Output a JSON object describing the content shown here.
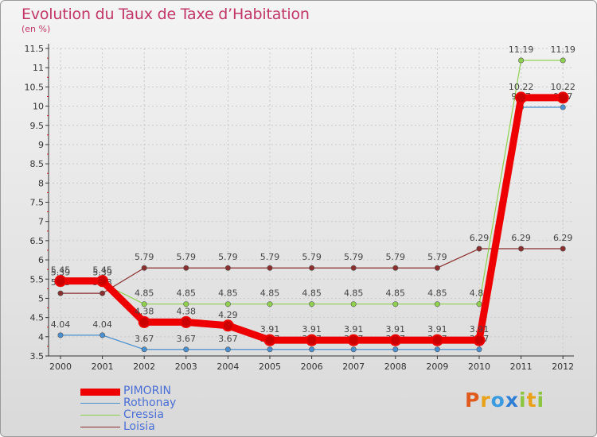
{
  "header": {
    "title": "Evolution du Taux de Taxe d’Habitation",
    "unit": "(en %)"
  },
  "chart_data": {
    "type": "line",
    "title": "Evolution du Taux de Taxe d’Habitation",
    "ylabel": "(en %)",
    "xlabel": "",
    "categories": [
      "2000",
      "2001",
      "2002",
      "2003",
      "2004",
      "2005",
      "2006",
      "2007",
      "2008",
      "2009",
      "2010",
      "2011",
      "2012"
    ],
    "ylim": [
      3.5,
      11.5
    ],
    "yticks": [
      "3.5",
      "4",
      "4.5",
      "5",
      "5.5",
      "6",
      "6.5",
      "7",
      "7.5",
      "8",
      "8.5",
      "9",
      "9.5",
      "10",
      "10.5",
      "11",
      "11.5"
    ],
    "series": [
      {
        "name": "PIMORIN",
        "color": "#ee0000",
        "values": [
          5.45,
          5.45,
          4.38,
          4.38,
          4.29,
          3.91,
          3.91,
          3.91,
          3.91,
          3.91,
          3.91,
          10.22,
          10.22
        ],
        "labels": [
          "5.45",
          "5.45",
          "4.38",
          "4.38",
          "4.29",
          "3.91",
          "3.91",
          "3.91",
          "3.91",
          "3.91",
          "3.91",
          "10.22",
          "10.22"
        ]
      },
      {
        "name": "Rothonay",
        "color": "#4a90d0",
        "values": [
          4.04,
          4.04,
          3.67,
          3.67,
          3.67,
          3.67,
          3.67,
          3.67,
          3.67,
          3.67,
          3.67,
          9.97,
          9.97
        ],
        "labels": [
          "4.04",
          "4.04",
          "3.67",
          "3.67",
          "3.67",
          "3.67",
          "3.67",
          "3.67",
          "3.67",
          "3.67",
          "3.67",
          "9.97",
          "9.97"
        ]
      },
      {
        "name": "Cressia",
        "color": "#8fd14f",
        "values": [
          5.39,
          5.39,
          4.85,
          4.85,
          4.85,
          4.85,
          4.85,
          4.85,
          4.85,
          4.85,
          4.85,
          11.19,
          11.19
        ],
        "labels": [
          "5.39",
          "5.39",
          "4.85",
          "4.85",
          "4.85",
          "4.85",
          "4.85",
          "4.85",
          "4.85",
          "4.85",
          "4.85",
          "11.19",
          "11.19"
        ]
      },
      {
        "name": "Loisia",
        "color": "#8b2e2e",
        "values": [
          5.13,
          5.13,
          5.79,
          5.79,
          5.79,
          5.79,
          5.79,
          5.79,
          5.79,
          5.79,
          6.29,
          6.29,
          6.29
        ],
        "labels": [
          "5.13",
          "5.13",
          "5.79",
          "5.79",
          "5.79",
          "5.79",
          "5.79",
          "5.79",
          "5.79",
          "5.79",
          "6.29",
          "6.29",
          "6.29"
        ]
      }
    ],
    "legend_position": "bottom-left"
  },
  "legend": {
    "items": [
      {
        "label": "PIMORIN",
        "color": "#ee0000"
      },
      {
        "label": "Rothonay",
        "color": "#4a90d0"
      },
      {
        "label": "Cressia",
        "color": "#8fd14f"
      },
      {
        "label": "Loisia",
        "color": "#8b2e2e"
      }
    ]
  },
  "logo": {
    "letters": [
      {
        "char": "P",
        "color": "#e05a1e"
      },
      {
        "char": "r",
        "color": "#e8a21a"
      },
      {
        "char": "o",
        "color": "#3a9be0"
      },
      {
        "char": "x",
        "color": "#2f7fd6"
      },
      {
        "char": "i",
        "color": "#8cc63f"
      },
      {
        "char": "t",
        "color": "#e8a21a"
      },
      {
        "char": "i",
        "color": "#8cc63f"
      }
    ]
  }
}
